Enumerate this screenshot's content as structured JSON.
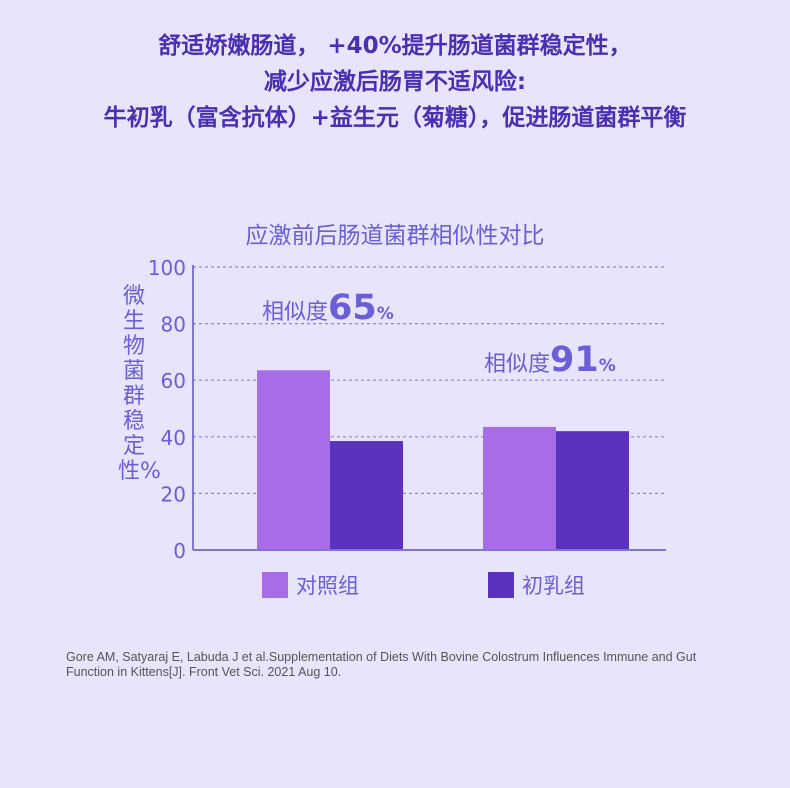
{
  "headline": {
    "line1": "舒适娇嫩肠道， +40%提升肠道菌群稳定性，",
    "line2": "减少应激后肠胃不适风险:",
    "line3": "牛初乳（富含抗体）+益生元（菊糖），促进肠道菌群平衡"
  },
  "chart_data": {
    "type": "bar",
    "title": "应激前后肠道菌群相似性对比",
    "ylabel": "微生物菌群稳定性%",
    "ylim": [
      0,
      100
    ],
    "yticks": [
      0,
      20,
      40,
      60,
      80,
      100
    ],
    "grid": true,
    "categories": [
      "",
      ""
    ],
    "series": [
      {
        "name": "对照组",
        "values": [
          63.5,
          43.5
        ],
        "color": "#a86de6"
      },
      {
        "name": "初乳组",
        "values": [
          38.5,
          42
        ],
        "color": "#5a32be"
      }
    ],
    "annotations": [
      {
        "prefix": "相似度",
        "value": "65",
        "suffix": "%"
      },
      {
        "prefix": "相似度",
        "value": "91",
        "suffix": "%"
      }
    ],
    "legend_position": "bottom"
  },
  "citation": "Gore AM, Satyaraj E, Labuda J et al.Supplementation of Diets With Bovine Colostrum Influences Immune and Gut Function in Kittens[J]. Front Vet Sci. 2021 Aug 10.",
  "colors": {
    "background": "#e8e4fb",
    "headline": "#4a2fb3",
    "chart_text": "#6a5fd6",
    "axis": "#7d74d8",
    "grid": "#8a82d8"
  }
}
